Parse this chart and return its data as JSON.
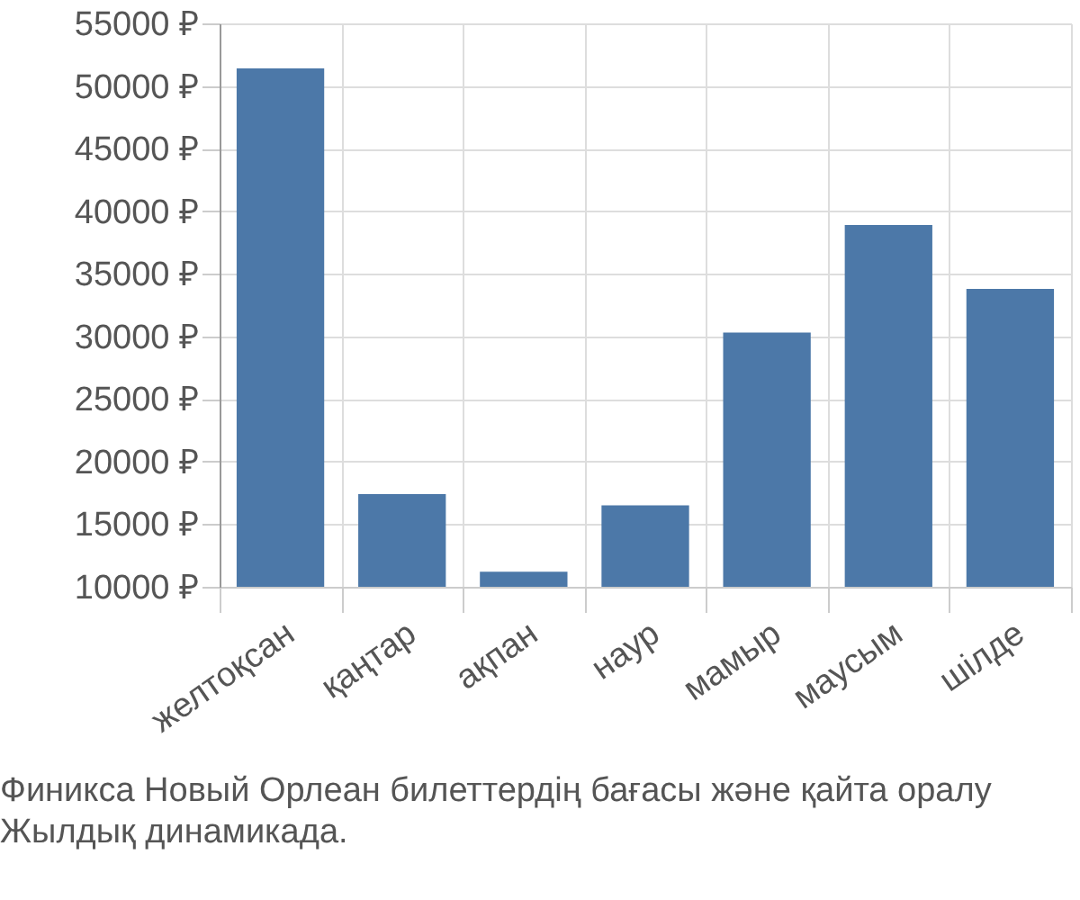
{
  "chart_data": {
    "type": "bar",
    "title": "Финикса Новый Орлеан билеттердің бағасы және қайта оралу",
    "subtitle": "Жылдық динамикада.",
    "categories": [
      "желтоқсан",
      "қаңтар",
      "ақпан",
      "наур",
      "мамыр",
      "маусым",
      "шілде"
    ],
    "values": [
      51400,
      17400,
      11200,
      16500,
      30300,
      38900,
      33800
    ],
    "color": "#4c78a8",
    "ylim": [
      10000,
      55000
    ],
    "yticks": [
      {
        "value": 10000,
        "label": "10000 ₽"
      },
      {
        "value": 15000,
        "label": "15000 ₽"
      },
      {
        "value": 20000,
        "label": "20000 ₽"
      },
      {
        "value": 25000,
        "label": "25000 ₽"
      },
      {
        "value": 30000,
        "label": "30000 ₽"
      },
      {
        "value": 35000,
        "label": "35000 ₽"
      },
      {
        "value": 40000,
        "label": "40000 ₽"
      },
      {
        "value": 45000,
        "label": "45000 ₽"
      },
      {
        "value": 50000,
        "label": "50000 ₽"
      },
      {
        "value": 55000,
        "label": "55000 ₽"
      }
    ],
    "grid": true
  }
}
